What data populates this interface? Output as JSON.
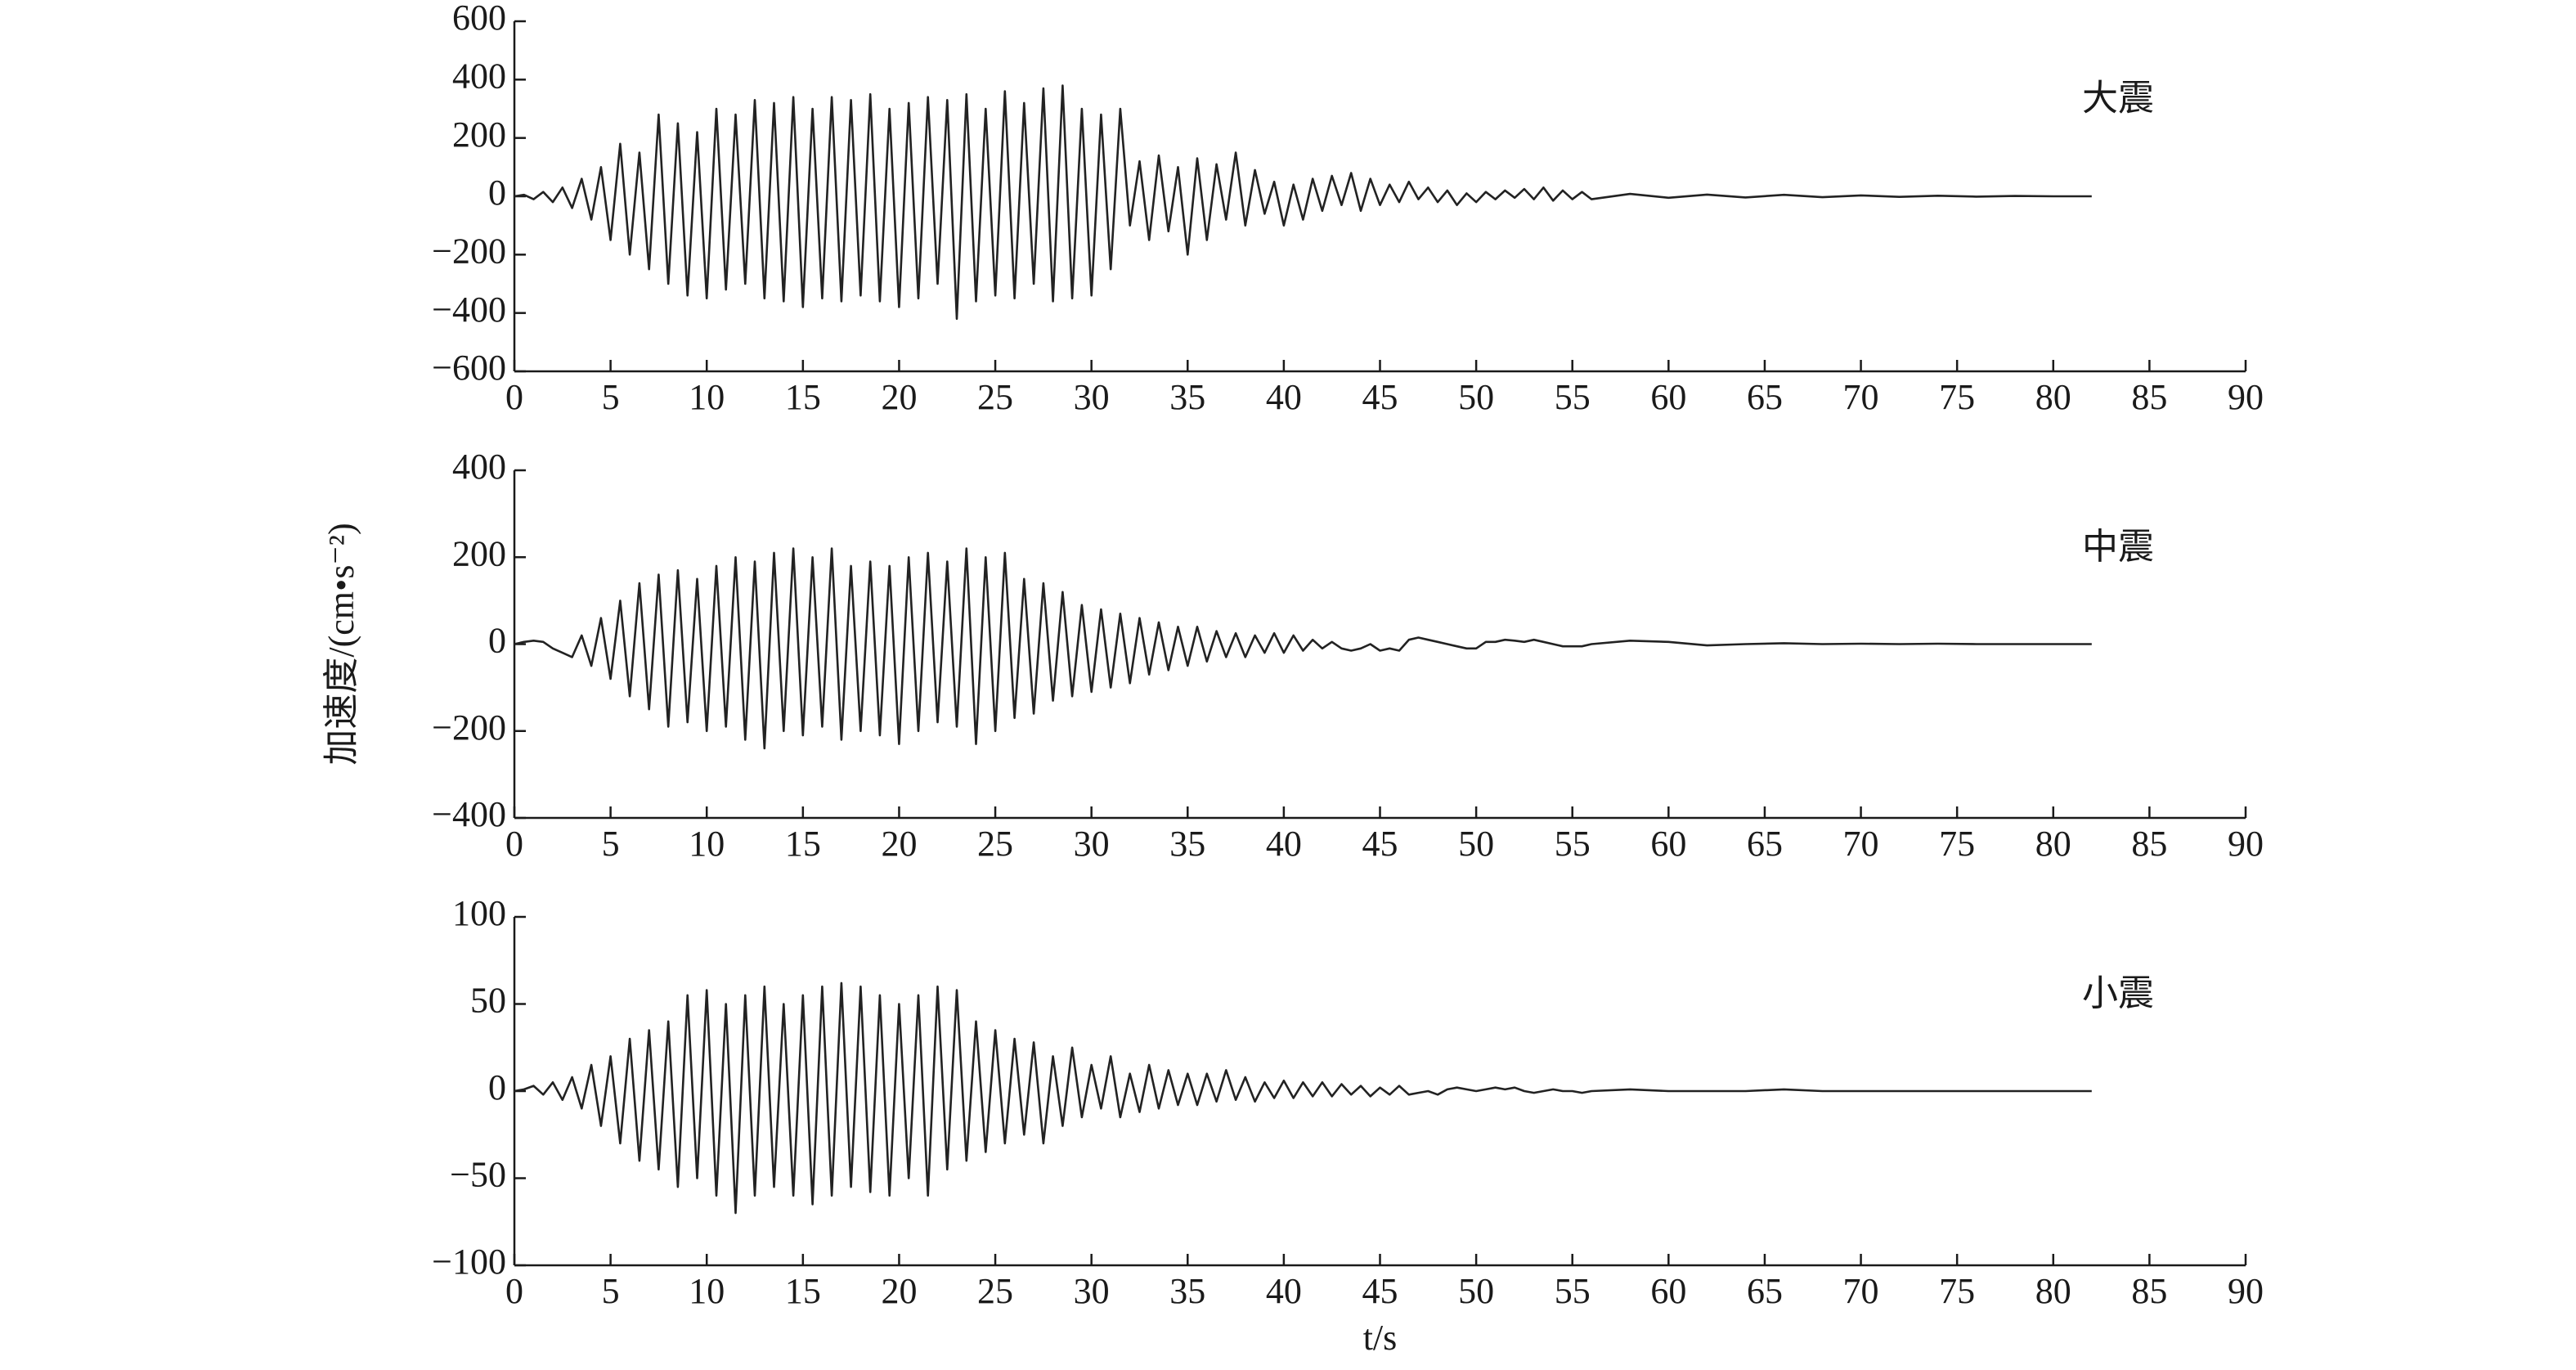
{
  "chart_data": [
    {
      "type": "line",
      "annotation": "大震",
      "color": "#222222",
      "x": [
        0,
        0.5,
        1,
        1.5,
        2,
        2.5,
        3,
        3.5,
        4,
        4.5,
        5,
        5.5,
        6,
        6.5,
        7,
        7.5,
        8,
        8.5,
        9,
        9.5,
        10,
        10.5,
        11,
        11.5,
        12,
        12.5,
        13,
        13.5,
        14,
        14.5,
        15,
        15.5,
        16,
        16.5,
        17,
        17.5,
        18,
        18.5,
        19,
        19.5,
        20,
        20.5,
        21,
        21.5,
        22,
        22.5,
        23,
        23.5,
        24,
        24.5,
        25,
        25.5,
        26,
        26.5,
        27,
        27.5,
        28,
        28.5,
        29,
        29.5,
        30,
        30.5,
        31,
        31.5,
        32,
        32.5,
        33,
        33.5,
        34,
        34.5,
        35,
        35.5,
        36,
        36.5,
        37,
        37.5,
        38,
        38.5,
        39,
        39.5,
        40,
        40.5,
        41,
        41.5,
        42,
        42.5,
        43,
        43.5,
        44,
        44.5,
        45,
        45.5,
        46,
        46.5,
        47,
        47.5,
        48,
        48.5,
        49,
        49.5,
        50,
        50.5,
        51,
        51.5,
        52,
        52.5,
        53,
        53.5,
        54,
        54.5,
        55,
        55.5,
        56,
        58,
        60,
        62,
        64,
        66,
        68,
        70,
        72,
        74,
        76,
        78,
        80,
        82
      ],
      "values": [
        0,
        5,
        -10,
        15,
        -20,
        30,
        -40,
        60,
        -80,
        100,
        -150,
        180,
        -200,
        150,
        -250,
        280,
        -300,
        250,
        -340,
        220,
        -350,
        300,
        -320,
        280,
        -300,
        330,
        -350,
        320,
        -360,
        340,
        -380,
        300,
        -350,
        340,
        -360,
        330,
        -340,
        350,
        -360,
        300,
        -380,
        320,
        -350,
        340,
        -300,
        330,
        -420,
        350,
        -360,
        300,
        -340,
        360,
        -350,
        320,
        -300,
        370,
        -360,
        380,
        -350,
        300,
        -340,
        280,
        -250,
        300,
        -100,
        120,
        -150,
        140,
        -120,
        100,
        -200,
        130,
        -150,
        110,
        -80,
        150,
        -100,
        90,
        -60,
        50,
        -100,
        40,
        -80,
        60,
        -50,
        70,
        -30,
        80,
        -50,
        60,
        -30,
        40,
        -20,
        50,
        -10,
        30,
        -20,
        20,
        -30,
        10,
        -20,
        15,
        -10,
        20,
        -5,
        25,
        -10,
        30,
        -15,
        20,
        -10,
        15,
        -10,
        8,
        -5,
        6,
        -4,
        5,
        -3,
        3,
        -2,
        2,
        -1,
        1,
        0,
        0
      ],
      "xlim": [
        0,
        90
      ],
      "xticks": [
        0,
        5,
        10,
        15,
        20,
        25,
        30,
        35,
        40,
        45,
        50,
        55,
        60,
        65,
        70,
        75,
        80,
        85,
        90
      ],
      "ylim": [
        -600,
        600
      ],
      "yticks": [
        {
          "value": -600,
          "label": "−600"
        },
        {
          "value": -400,
          "label": "−400"
        },
        {
          "value": -200,
          "label": "−200"
        },
        0,
        200,
        400,
        600
      ]
    },
    {
      "type": "line",
      "annotation": "中震",
      "color": "#222222",
      "ylabel": "加速度/(cm•s⁻²)",
      "x": [
        0,
        0.5,
        1,
        1.5,
        2,
        2.5,
        3,
        3.5,
        4,
        4.5,
        5,
        5.5,
        6,
        6.5,
        7,
        7.5,
        8,
        8.5,
        9,
        9.5,
        10,
        10.5,
        11,
        11.5,
        12,
        12.5,
        13,
        13.5,
        14,
        14.5,
        15,
        15.5,
        16,
        16.5,
        17,
        17.5,
        18,
        18.5,
        19,
        19.5,
        20,
        20.5,
        21,
        21.5,
        22,
        22.5,
        23,
        23.5,
        24,
        24.5,
        25,
        25.5,
        26,
        26.5,
        27,
        27.5,
        28,
        28.5,
        29,
        29.5,
        30,
        30.5,
        31,
        31.5,
        32,
        32.5,
        33,
        33.5,
        34,
        34.5,
        35,
        35.5,
        36,
        36.5,
        37,
        37.5,
        38,
        38.5,
        39,
        39.5,
        40,
        40.5,
        41,
        41.5,
        42,
        42.5,
        43,
        43.5,
        44,
        44.5,
        45,
        45.5,
        46,
        46.5,
        47,
        47.5,
        48,
        48.5,
        49,
        49.5,
        50,
        50.5,
        51,
        51.5,
        52,
        52.5,
        53,
        53.5,
        54,
        54.5,
        55,
        55.5,
        56,
        58,
        60,
        62,
        64,
        66,
        68,
        70,
        72,
        74,
        76,
        78,
        80,
        82
      ],
      "values": [
        0,
        5,
        8,
        5,
        -10,
        -20,
        -30,
        20,
        -50,
        60,
        -80,
        100,
        -120,
        140,
        -150,
        160,
        -190,
        170,
        -180,
        150,
        -200,
        180,
        -190,
        200,
        -220,
        190,
        -240,
        210,
        -200,
        220,
        -210,
        200,
        -190,
        220,
        -220,
        180,
        -200,
        190,
        -210,
        180,
        -230,
        200,
        -200,
        210,
        -180,
        190,
        -190,
        220,
        -230,
        200,
        -200,
        210,
        -170,
        150,
        -160,
        140,
        -130,
        120,
        -120,
        90,
        -110,
        80,
        -100,
        70,
        -90,
        60,
        -70,
        50,
        -60,
        40,
        -50,
        40,
        -40,
        30,
        -30,
        25,
        -30,
        20,
        -20,
        25,
        -20,
        20,
        -15,
        10,
        -10,
        5,
        -10,
        -15,
        -10,
        0,
        -15,
        -10,
        -15,
        10,
        15,
        10,
        5,
        0,
        -5,
        -10,
        -10,
        5,
        5,
        10,
        8,
        5,
        10,
        5,
        0,
        -5,
        -5,
        -5,
        0,
        8,
        5,
        -3,
        0,
        2,
        0,
        1,
        0,
        1,
        0,
        0,
        0,
        0
      ],
      "xlim": [
        0,
        90
      ],
      "xticks": [
        0,
        5,
        10,
        15,
        20,
        25,
        30,
        35,
        40,
        45,
        50,
        55,
        60,
        65,
        70,
        75,
        80,
        85,
        90
      ],
      "ylim": [
        -400,
        400
      ],
      "yticks": [
        {
          "value": -400,
          "label": "−400"
        },
        {
          "value": -200,
          "label": "−200"
        },
        0,
        200,
        400
      ]
    },
    {
      "type": "line",
      "annotation": "小震",
      "color": "#222222",
      "xlabel": "t/s",
      "x": [
        0,
        0.5,
        1,
        1.5,
        2,
        2.5,
        3,
        3.5,
        4,
        4.5,
        5,
        5.5,
        6,
        6.5,
        7,
        7.5,
        8,
        8.5,
        9,
        9.5,
        10,
        10.5,
        11,
        11.5,
        12,
        12.5,
        13,
        13.5,
        14,
        14.5,
        15,
        15.5,
        16,
        16.5,
        17,
        17.5,
        18,
        18.5,
        19,
        19.5,
        20,
        20.5,
        21,
        21.5,
        22,
        22.5,
        23,
        23.5,
        24,
        24.5,
        25,
        25.5,
        26,
        26.5,
        27,
        27.5,
        28,
        28.5,
        29,
        29.5,
        30,
        30.5,
        31,
        31.5,
        32,
        32.5,
        33,
        33.5,
        34,
        34.5,
        35,
        35.5,
        36,
        36.5,
        37,
        37.5,
        38,
        38.5,
        39,
        39.5,
        40,
        40.5,
        41,
        41.5,
        42,
        42.5,
        43,
        43.5,
        44,
        44.5,
        45,
        45.5,
        46,
        46.5,
        47,
        47.5,
        48,
        48.5,
        49,
        49.5,
        50,
        50.5,
        51,
        51.5,
        52,
        52.5,
        53,
        53.5,
        54,
        54.5,
        55,
        55.5,
        56,
        58,
        60,
        62,
        64,
        66,
        68,
        70,
        72,
        74,
        76,
        78,
        80,
        82
      ],
      "values": [
        0,
        1,
        3,
        -2,
        5,
        -5,
        8,
        -10,
        15,
        -20,
        20,
        -30,
        30,
        -40,
        35,
        -45,
        40,
        -55,
        55,
        -50,
        58,
        -60,
        50,
        -70,
        55,
        -60,
        60,
        -55,
        50,
        -60,
        55,
        -65,
        60,
        -60,
        62,
        -55,
        60,
        -58,
        55,
        -60,
        50,
        -50,
        55,
        -60,
        60,
        -45,
        58,
        -40,
        40,
        -35,
        35,
        -30,
        30,
        -25,
        28,
        -30,
        20,
        -20,
        25,
        -15,
        15,
        -10,
        20,
        -15,
        10,
        -12,
        15,
        -10,
        12,
        -8,
        10,
        -8,
        10,
        -6,
        12,
        -5,
        8,
        -6,
        5,
        -4,
        6,
        -4,
        5,
        -3,
        5,
        -3,
        4,
        -2,
        3,
        -3,
        2,
        -2,
        3,
        -2,
        -1,
        0,
        -2,
        1,
        2,
        1,
        0,
        1,
        2,
        1,
        2,
        0,
        -1,
        0,
        1,
        0,
        0,
        -1,
        0,
        1,
        0,
        0,
        0,
        1,
        0,
        0,
        0,
        0,
        0,
        0,
        0,
        0
      ],
      "xlim": [
        0,
        90
      ],
      "xticks": [
        0,
        5,
        10,
        15,
        20,
        25,
        30,
        35,
        40,
        45,
        50,
        55,
        60,
        65,
        70,
        75,
        80,
        85,
        90
      ],
      "ylim": [
        -100,
        100
      ],
      "yticks": [
        {
          "value": -100,
          "label": "−100"
        },
        {
          "value": -50,
          "label": "−50"
        },
        0,
        50,
        100
      ]
    }
  ]
}
